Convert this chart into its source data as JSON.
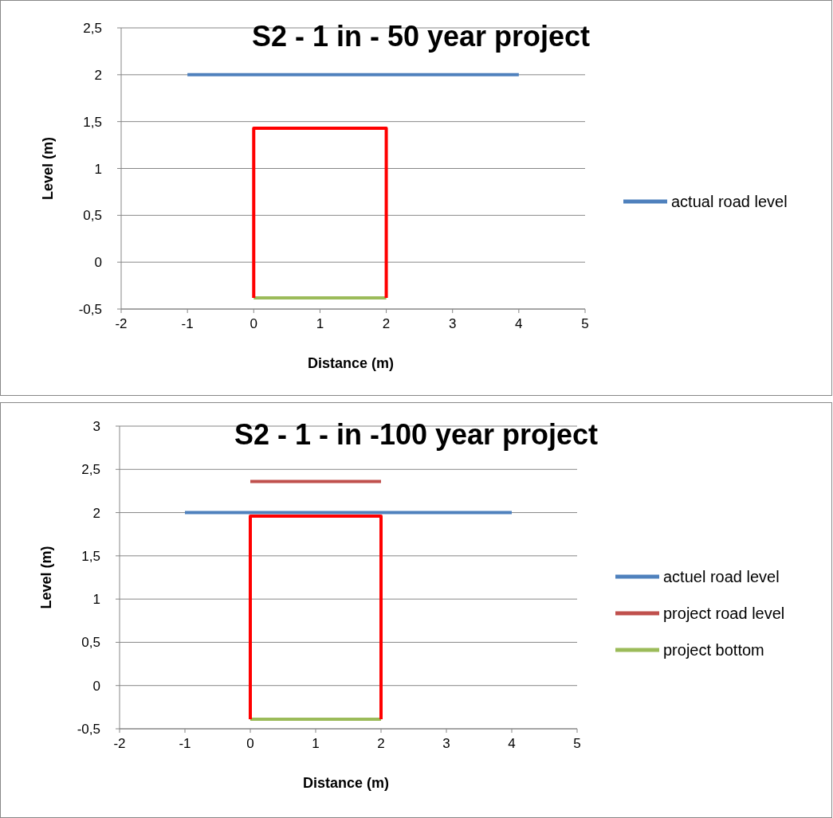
{
  "chart_data": [
    {
      "type": "line",
      "title": "S2 - 1 in - 50 year project",
      "xlabel": "Distance (m)",
      "ylabel": "Level (m)",
      "xlim": [
        -2,
        5
      ],
      "xticks": [
        -2,
        -1,
        0,
        1,
        2,
        3,
        4,
        5
      ],
      "ylim": [
        -0.5,
        2.5
      ],
      "yticks": [
        {
          "value": -0.5,
          "label": "-0,5"
        },
        0,
        {
          "value": 0.5,
          "label": "0,5"
        },
        1,
        {
          "value": 1.5,
          "label": "1,5"
        },
        2,
        {
          "value": 2.5,
          "label": "2,5"
        }
      ],
      "grid": "y",
      "legend": "right",
      "series": [
        {
          "name": "actual road level",
          "color": "#4f81bd",
          "x": [
            -1,
            4
          ],
          "values": [
            2,
            2
          ]
        },
        {
          "color": "#9bbb59",
          "x": [
            0,
            2
          ],
          "values": [
            -0.38,
            -0.38
          ]
        },
        {
          "color": "#ff0000",
          "x": [
            0,
            0,
            2,
            2
          ],
          "values": [
            -0.38,
            1.43,
            1.43,
            -0.38
          ]
        }
      ]
    },
    {
      "type": "line",
      "title": "S2 - 1 - in -100 year project",
      "xlabel": "Distance (m)",
      "ylabel": "Level (m)",
      "xlim": [
        -2,
        5
      ],
      "xticks": [
        -2,
        -1,
        0,
        1,
        2,
        3,
        4,
        5
      ],
      "ylim": [
        -0.5,
        3
      ],
      "yticks": [
        {
          "value": -0.5,
          "label": "-0,5"
        },
        0,
        {
          "value": 0.5,
          "label": "0,5"
        },
        1,
        {
          "value": 1.5,
          "label": "1,5"
        },
        2,
        {
          "value": 2.5,
          "label": "2,5"
        },
        3
      ],
      "grid": "y",
      "legend": "right",
      "series": [
        {
          "name": "actuel road level",
          "color": "#4f81bd",
          "x": [
            -1,
            4
          ],
          "values": [
            2,
            2
          ]
        },
        {
          "name": "project road level",
          "color": "#c0504d",
          "x": [
            0,
            2
          ],
          "values": [
            2.36,
            2.36
          ]
        },
        {
          "name": "project bottom",
          "color": "#9bbb59",
          "x": [
            0,
            2
          ],
          "values": [
            -0.39,
            -0.39
          ]
        },
        {
          "color": "#ff0000",
          "x": [
            0,
            0,
            2,
            2
          ],
          "values": [
            -0.39,
            1.96,
            1.96,
            -0.39
          ]
        }
      ]
    }
  ]
}
